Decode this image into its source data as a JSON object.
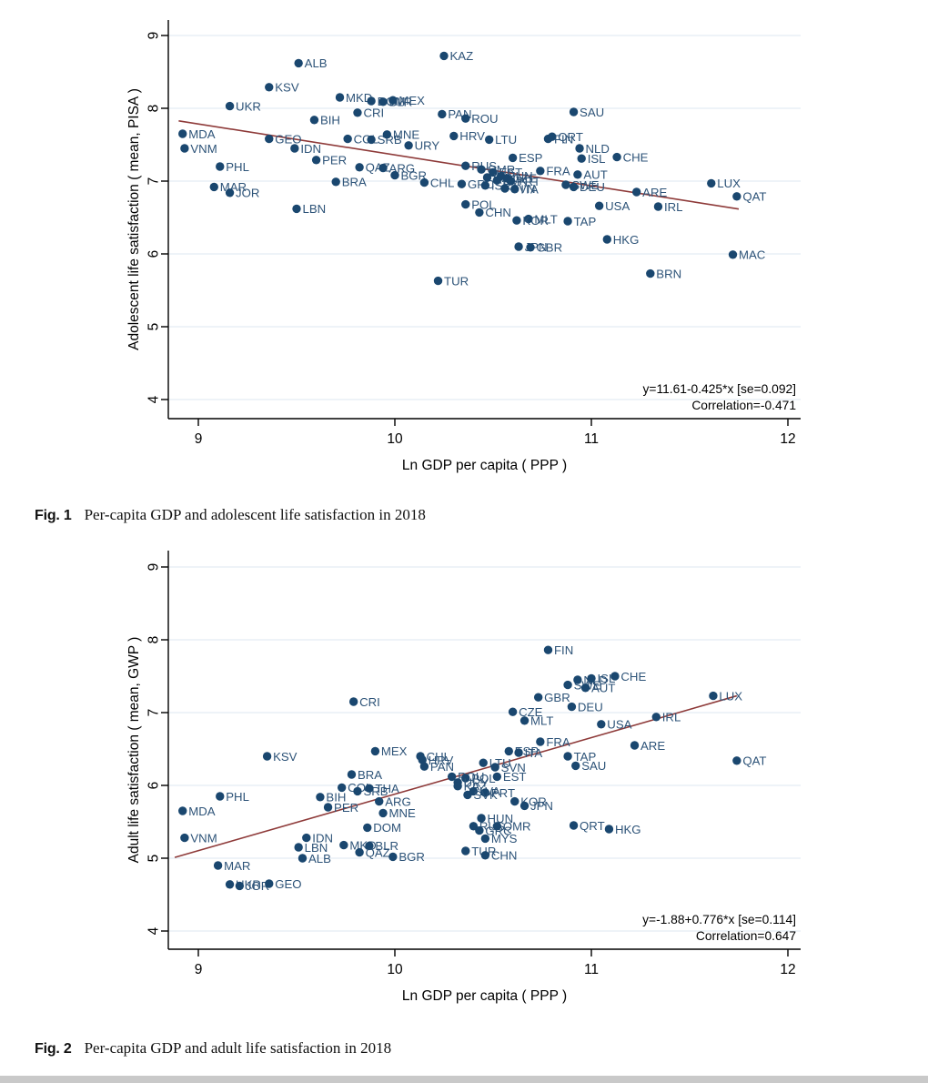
{
  "page": {
    "background": "#ffffff",
    "footer_strip_color": "#c9c9c9"
  },
  "colors": {
    "dot": "#1a476f",
    "point_label": "#2d5378",
    "regression_line": "#8e3a39",
    "grid": "#e3ecf3",
    "axis": "#000000",
    "tick_text": "#000000",
    "annotation_text": "#000000"
  },
  "captions": {
    "fig1": {
      "label": "Fig. 1",
      "text": "Per-capita GDP and adolescent life satisfaction in 2018"
    },
    "fig2": {
      "label": "Fig. 2",
      "text": "Per-capita GDP and adult life satisfaction in 2018"
    }
  },
  "chart_data": [
    {
      "id": "fig1",
      "type": "scatter",
      "title": "",
      "xlabel": "Ln GDP per capita ( PPP )",
      "ylabel": "Adolescent life satisfaction ( mean, PISA )",
      "xticks": [
        9,
        10,
        11,
        12
      ],
      "yticks": [
        4,
        5,
        6,
        7,
        8,
        9
      ],
      "xlim": [
        8.85,
        12.08
      ],
      "ylim": [
        3.73,
        9.22
      ],
      "grid": true,
      "legend": "none",
      "regression": {
        "equation": "y=11.61-0.425*x [se=0.092]",
        "correlation": "Correlation=-0.471",
        "intercept": 11.61,
        "slope": -0.425,
        "x_start": 8.9,
        "x_end": 11.75
      },
      "points": [
        [
          "MDA",
          8.92,
          7.65
        ],
        [
          "VNM",
          8.93,
          7.45
        ],
        [
          "PHL",
          9.11,
          7.2
        ],
        [
          "MAR",
          9.08,
          6.92
        ],
        [
          "JOR",
          9.16,
          6.84
        ],
        [
          "UKR",
          9.16,
          8.03
        ],
        [
          "KSV",
          9.36,
          8.29
        ],
        [
          "GEO",
          9.36,
          7.58
        ],
        [
          "ALB",
          9.51,
          8.62
        ],
        [
          "LBN",
          9.5,
          6.62
        ],
        [
          "IDN",
          9.49,
          7.45
        ],
        [
          "BIH",
          9.59,
          7.84
        ],
        [
          "COL",
          9.76,
          7.58
        ],
        [
          "PER",
          9.6,
          7.29
        ],
        [
          "MKD",
          9.72,
          8.15
        ],
        [
          "BRA",
          9.7,
          6.99
        ],
        [
          "SRB",
          9.88,
          7.57
        ],
        [
          "CRI",
          9.81,
          7.94
        ],
        [
          "DOM",
          9.88,
          8.1
        ],
        [
          "BLR",
          9.94,
          8.09
        ],
        [
          "MEX",
          9.99,
          8.11
        ],
        [
          "QAZ",
          9.82,
          7.19
        ],
        [
          "MNE",
          9.96,
          7.64
        ],
        [
          "ARG",
          9.94,
          7.18
        ],
        [
          "URY",
          10.07,
          7.49
        ],
        [
          "BGR",
          10.0,
          7.08
        ],
        [
          "CHL",
          10.15,
          6.98
        ],
        [
          "TUR",
          10.22,
          5.63
        ],
        [
          "KAZ",
          10.25,
          8.72
        ],
        [
          "PAN",
          10.24,
          7.92
        ],
        [
          "HRV",
          10.3,
          7.62
        ],
        [
          "RUS",
          10.36,
          7.21
        ],
        [
          "ROU",
          10.36,
          7.86
        ],
        [
          "QMR",
          10.44,
          7.16
        ],
        [
          "GRC",
          10.34,
          6.96
        ],
        [
          "ISR",
          10.46,
          6.94
        ],
        [
          "POL",
          10.36,
          6.68
        ],
        [
          "LTU",
          10.48,
          7.57
        ],
        [
          "CHN",
          10.43,
          6.57
        ],
        [
          "SVN",
          10.56,
          6.9
        ],
        [
          "ITA",
          10.61,
          6.89
        ],
        [
          "EST",
          10.5,
          7.12
        ],
        [
          "LVA",
          10.47,
          7.05
        ],
        [
          "SVK",
          10.52,
          7.01
        ],
        [
          "HUN",
          10.54,
          7.07
        ],
        [
          "CZE",
          10.57,
          7.04
        ],
        [
          "PRT",
          10.59,
          7.0
        ],
        [
          "ESP",
          10.6,
          7.32
        ],
        [
          "MLT",
          10.68,
          6.48
        ],
        [
          "KOR",
          10.62,
          6.46
        ],
        [
          "JPN",
          10.63,
          6.1
        ],
        [
          "GBR",
          10.69,
          6.09
        ],
        [
          "TAP",
          10.88,
          6.45
        ],
        [
          "FIN",
          10.78,
          7.58
        ],
        [
          "QRT",
          10.8,
          7.61
        ],
        [
          "FRA",
          10.74,
          7.14
        ],
        [
          "AUT",
          10.93,
          7.09
        ],
        [
          "SWE",
          10.87,
          6.95
        ],
        [
          "DEU",
          10.91,
          6.92
        ],
        [
          "SAU",
          10.91,
          7.95
        ],
        [
          "NLD",
          10.94,
          7.45
        ],
        [
          "ISL",
          10.95,
          7.31
        ],
        [
          "CHE",
          11.13,
          7.33
        ],
        [
          "USA",
          11.04,
          6.66
        ],
        [
          "HKG",
          11.08,
          6.2
        ],
        [
          "ARE",
          11.23,
          6.85
        ],
        [
          "IRL",
          11.34,
          6.65
        ],
        [
          "BRN",
          11.3,
          5.73
        ],
        [
          "LUX",
          11.61,
          6.97
        ],
        [
          "QAT",
          11.74,
          6.79
        ],
        [
          "MAC",
          11.72,
          5.99
        ]
      ]
    },
    {
      "id": "fig2",
      "type": "scatter",
      "title": "",
      "xlabel": "Ln GDP per capita ( PPP )",
      "ylabel": "Adult life satisfaction ( mean, GWP )",
      "xticks": [
        9,
        10,
        11,
        12
      ],
      "yticks": [
        4,
        5,
        6,
        7,
        8,
        9
      ],
      "xlim": [
        8.85,
        12.08
      ],
      "ylim": [
        3.73,
        9.22
      ],
      "grid": true,
      "legend": "none",
      "regression": {
        "equation": "y=-1.88+0.776*x [se=0.114]",
        "correlation": "Correlation=0.647",
        "intercept": -1.88,
        "slope": 0.776,
        "x_start": 8.88,
        "x_end": 11.74
      },
      "points": [
        [
          "MDA",
          8.92,
          5.65
        ],
        [
          "VNM",
          8.93,
          5.28
        ],
        [
          "PHL",
          9.11,
          5.85
        ],
        [
          "MAR",
          9.1,
          4.9
        ],
        [
          "UKR",
          9.16,
          4.64
        ],
        [
          "JOR",
          9.21,
          4.62
        ],
        [
          "GEO",
          9.36,
          4.65
        ],
        [
          "KSV",
          9.35,
          6.4
        ],
        [
          "LBN",
          9.51,
          5.15
        ],
        [
          "IDN",
          9.55,
          5.28
        ],
        [
          "ALB",
          9.53,
          5.0
        ],
        [
          "BIH",
          9.62,
          5.84
        ],
        [
          "PER",
          9.66,
          5.7
        ],
        [
          "COL",
          9.73,
          5.97
        ],
        [
          "SRB",
          9.81,
          5.92
        ],
        [
          "THA",
          9.87,
          5.96
        ],
        [
          "BRA",
          9.78,
          6.15
        ],
        [
          "CRI",
          9.79,
          7.15
        ],
        [
          "MKD",
          9.74,
          5.18
        ],
        [
          "BLR",
          9.87,
          5.17
        ],
        [
          "QAZ",
          9.82,
          5.08
        ],
        [
          "BGR",
          9.99,
          5.02
        ],
        [
          "ARG",
          9.92,
          5.78
        ],
        [
          "MNE",
          9.94,
          5.62
        ],
        [
          "DOM",
          9.86,
          5.42
        ],
        [
          "MEX",
          9.9,
          6.47
        ],
        [
          "CHL",
          10.13,
          6.4
        ],
        [
          "HRV",
          10.14,
          6.35
        ],
        [
          "PAN",
          10.15,
          6.26
        ],
        [
          "ROU",
          10.29,
          6.12
        ],
        [
          "POL",
          10.36,
          6.1
        ],
        [
          "URY",
          10.32,
          6.04
        ],
        [
          "KAZ",
          10.32,
          5.99
        ],
        [
          "LTU",
          10.45,
          6.31
        ],
        [
          "SVN",
          10.51,
          6.25
        ],
        [
          "EST",
          10.52,
          6.12
        ],
        [
          "LVA",
          10.4,
          5.92
        ],
        [
          "PRT",
          10.46,
          5.9
        ],
        [
          "SVK",
          10.37,
          5.87
        ],
        [
          "KOR",
          10.61,
          5.78
        ],
        [
          "JPN",
          10.66,
          5.72
        ],
        [
          "HUN",
          10.44,
          5.55
        ],
        [
          "RUS",
          10.4,
          5.44
        ],
        [
          "GRC",
          10.43,
          5.38
        ],
        [
          "QMR",
          10.52,
          5.44
        ],
        [
          "MYS",
          10.46,
          5.27
        ],
        [
          "TUR",
          10.36,
          5.1
        ],
        [
          "CHN",
          10.46,
          5.04
        ],
        [
          "CZE",
          10.6,
          7.01
        ],
        [
          "MLT",
          10.66,
          6.89
        ],
        [
          "GBR",
          10.73,
          7.21
        ],
        [
          "DEU",
          10.9,
          7.08
        ],
        [
          "FIN",
          10.78,
          7.86
        ],
        [
          "SWE",
          10.88,
          7.38
        ],
        [
          "NLD",
          10.93,
          7.45
        ],
        [
          "ISL",
          11.0,
          7.47
        ],
        [
          "AUT",
          10.97,
          7.34
        ],
        [
          "CHE",
          11.12,
          7.5
        ],
        [
          "USA",
          11.05,
          6.84
        ],
        [
          "IRL",
          11.33,
          6.94
        ],
        [
          "LUX",
          11.62,
          7.23
        ],
        [
          "FRA",
          10.74,
          6.6
        ],
        [
          "ESP",
          10.58,
          6.47
        ],
        [
          "ITA",
          10.63,
          6.45
        ],
        [
          "TAP",
          10.88,
          6.4
        ],
        [
          "SAU",
          10.92,
          6.27
        ],
        [
          "ARE",
          11.22,
          6.55
        ],
        [
          "QAT",
          11.74,
          6.34
        ],
        [
          "QRT",
          10.91,
          5.45
        ],
        [
          "HKG",
          11.09,
          5.4
        ]
      ]
    }
  ]
}
